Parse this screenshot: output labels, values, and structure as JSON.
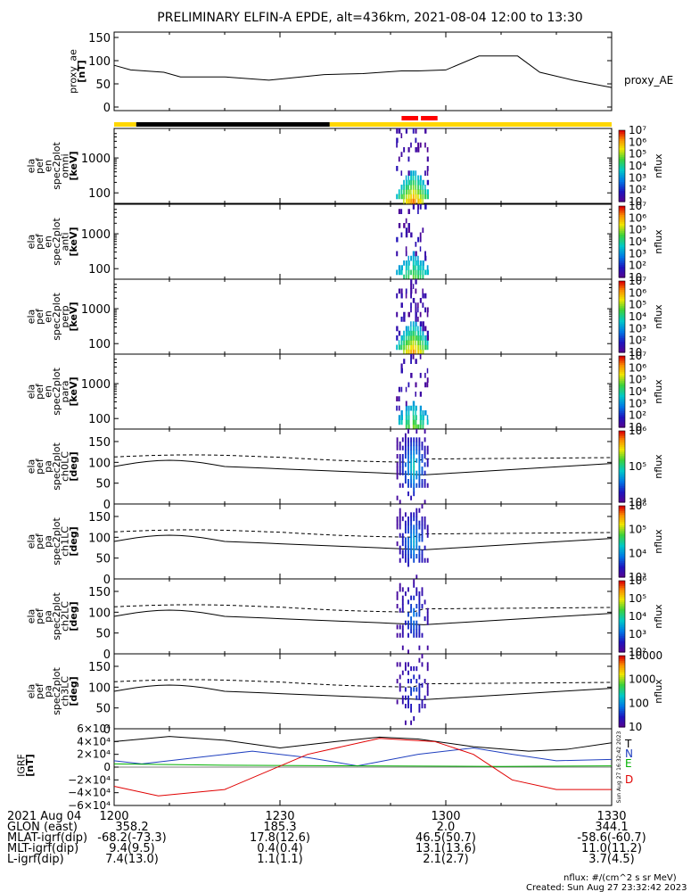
{
  "title": "PRELIMINARY ELFIN-A EPDE, alt=436km, 2021-08-04 12:00 to 13:30",
  "colors": {
    "ae": "#000000",
    "bar_yellow": "#ffd700",
    "bar_black": "#000000",
    "bar_red": "#ff0000",
    "T": "#000000",
    "N": "#1f3fbf",
    "E": "#00b000",
    "D": "#e00000"
  },
  "chart_data": [
    {
      "type": "line",
      "panel": "proxy_ae",
      "ylabel": [
        "proxy_ae",
        "[nT]"
      ],
      "legend": "proxy_AE",
      "ylim": [
        0,
        150
      ],
      "yticks": [
        "0",
        "50",
        "100",
        "150"
      ],
      "x_minutes": [
        0,
        3,
        9,
        12,
        20,
        28,
        38,
        45,
        52,
        55,
        60,
        66,
        73,
        77,
        83,
        90
      ],
      "values": [
        90,
        80,
        75,
        65,
        65,
        58,
        70,
        72,
        78,
        78,
        80,
        110,
        110,
        75,
        58,
        42
      ]
    },
    {
      "type": "bar",
      "panel": "science_zone_bar",
      "segments": [
        {
          "from": 0,
          "to": 4,
          "color": "yellow"
        },
        {
          "from": 4,
          "to": 39,
          "color": "black"
        },
        {
          "from": 39,
          "to": 90,
          "color": "yellow"
        }
      ],
      "red_marks": [
        [
          52,
          55
        ],
        [
          55.5,
          58.5
        ]
      ]
    },
    {
      "type": "heatmap",
      "panel": "omni",
      "ylabel": [
        "ela",
        "pef",
        "en",
        "spec2plot",
        "omni",
        "[keV]"
      ],
      "yticks": [
        "100",
        "1000"
      ],
      "colorbar": {
        "label": "nflux",
        "ticks": [
          "10",
          "10²",
          "10³",
          "10⁴",
          "10⁵",
          "10⁶",
          "10⁷"
        ]
      }
    },
    {
      "type": "heatmap",
      "panel": "anti",
      "ylabel": [
        "ela",
        "pef",
        "en",
        "spec2plot",
        "anti",
        "[keV]"
      ],
      "yticks": [
        "100",
        "1000"
      ],
      "colorbar": {
        "label": "nflux",
        "ticks": [
          "10",
          "10²",
          "10³",
          "10⁴",
          "10⁵",
          "10⁶",
          "10⁷"
        ]
      }
    },
    {
      "type": "heatmap",
      "panel": "perp",
      "ylabel": [
        "ela",
        "pef",
        "en",
        "spec2plot",
        "perp",
        "[keV]"
      ],
      "yticks": [
        "100",
        "1000"
      ],
      "colorbar": {
        "label": "nflux",
        "ticks": [
          "10",
          "10²",
          "10³",
          "10⁴",
          "10⁵",
          "10⁶",
          "10⁷"
        ]
      }
    },
    {
      "type": "heatmap",
      "panel": "para",
      "ylabel": [
        "ela",
        "pef",
        "en",
        "spec2plot",
        "para",
        "[keV]"
      ],
      "yticks": [
        "100",
        "1000"
      ],
      "colorbar": {
        "label": "nflux",
        "ticks": [
          "10",
          "10²",
          "10³",
          "10⁴",
          "10⁵",
          "10⁶",
          "10⁷"
        ]
      }
    },
    {
      "type": "heatmap",
      "panel": "ch0LC",
      "ylabel": [
        "ela",
        "pef",
        "pa",
        "spec2plot",
        "ch0LC",
        "[deg]"
      ],
      "yticks": [
        "0",
        "50",
        "100",
        "150"
      ],
      "colorbar": {
        "label": "nflux",
        "ticks": [
          "10⁴",
          "10⁵",
          "10⁶"
        ]
      }
    },
    {
      "type": "heatmap",
      "panel": "ch1LC",
      "ylabel": [
        "ela",
        "pef",
        "pa",
        "spec2plot",
        "ch1LC",
        "[deg]"
      ],
      "yticks": [
        "0",
        "50",
        "100",
        "150"
      ],
      "colorbar": {
        "label": "nflux",
        "ticks": [
          "10³",
          "10⁴",
          "10⁵",
          "10⁶"
        ]
      }
    },
    {
      "type": "heatmap",
      "panel": "ch2LC",
      "ylabel": [
        "ela",
        "pef",
        "pa",
        "spec2plot",
        "ch2LC",
        "[deg]"
      ],
      "yticks": [
        "0",
        "50",
        "100",
        "150"
      ],
      "colorbar": {
        "label": "nflux",
        "ticks": [
          "10²",
          "10³",
          "10⁴",
          "10⁵",
          "10⁶"
        ]
      }
    },
    {
      "type": "heatmap",
      "panel": "ch3LC",
      "ylabel": [
        "ela",
        "pef",
        "pa",
        "spec2plot",
        "ch3LC",
        "[deg]"
      ],
      "yticks": [
        "0",
        "50",
        "100",
        "150"
      ],
      "colorbar": {
        "label": "nflux",
        "ticks": [
          "10",
          "100",
          "1000",
          "10000"
        ]
      }
    },
    {
      "type": "line",
      "panel": "IGRF",
      "ylabel": [
        "IGRF",
        "[nT]"
      ],
      "ylim": [
        -60000,
        60000
      ],
      "yticks": [
        "6×10⁴",
        "4×10⁴",
        "2×10⁴",
        "0",
        "−2×10⁴",
        "−4×10⁴",
        "−6×10⁴"
      ],
      "side_text": "Sun Aug 27 16:32:42 2023",
      "series": [
        {
          "name": "T",
          "x_minutes": [
            0,
            10,
            20,
            30,
            40,
            48,
            55,
            65,
            75,
            82,
            90
          ],
          "values": [
            40000,
            48000,
            42000,
            30000,
            40000,
            47000,
            44000,
            32000,
            25000,
            28000,
            38000
          ]
        },
        {
          "name": "N",
          "x_minutes": [
            0,
            5,
            15,
            25,
            35,
            44,
            55,
            65,
            72,
            80,
            90
          ],
          "values": [
            10000,
            5000,
            15000,
            25000,
            15000,
            2000,
            20000,
            30000,
            20000,
            10000,
            12000
          ]
        },
        {
          "name": "E",
          "x_minutes": [
            0,
            20,
            45,
            70,
            90
          ],
          "values": [
            5000,
            3000,
            2000,
            1000,
            2000
          ]
        },
        {
          "name": "D",
          "x_minutes": [
            0,
            8,
            20,
            35,
            48,
            58,
            65,
            72,
            80,
            90
          ],
          "values": [
            -30000,
            -45000,
            -35000,
            20000,
            45000,
            40000,
            20000,
            -20000,
            -35000,
            -35000
          ]
        }
      ]
    }
  ],
  "heatmap_axis": {
    "energy_ylim_keV": [
      50,
      7000
    ],
    "pa_ylim_deg": [
      0,
      180
    ],
    "burst_window_minutes": [
      51,
      57
    ],
    "ch_lines_deg": {
      "dashed_center": 113,
      "solid_center": 90
    }
  },
  "footer": {
    "row_labels": [
      "2021 Aug 04",
      "GLON (east)",
      "MLAT-igrf(dip)",
      "MLT-igrf(dip)",
      "L-igrf(dip)"
    ],
    "time_labels": [
      "1200",
      "1230",
      "1300",
      "1330"
    ],
    "columns": [
      [
        "358.2",
        "-68.2(-73.3)",
        "9.4(9.5)",
        "7.4(13.0)"
      ],
      [
        "185.3",
        "17.8(12.6)",
        "0.4(0.4)",
        "1.1(1.1)"
      ],
      [
        "2.0",
        "46.5(50.7)",
        "13.1(13.6)",
        "2.1(2.7)"
      ],
      [
        "344.1",
        "-58.6(-60.7)",
        "11.0(11.2)",
        "3.7(4.5)"
      ]
    ],
    "units_note": "nflux: #/(cm^2 s sr MeV)",
    "created": "Created: Sun Aug 27 23:32:42 2023"
  }
}
